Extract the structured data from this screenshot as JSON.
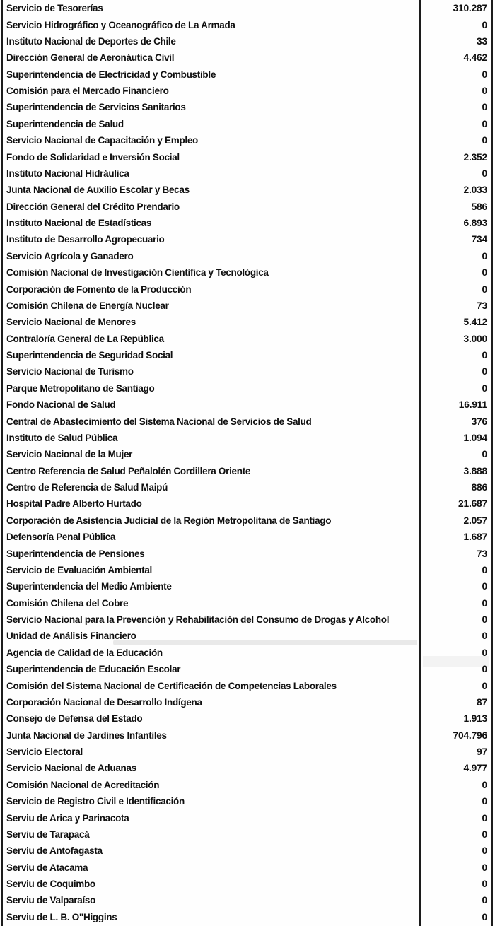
{
  "table": {
    "rows": [
      {
        "name": "Servicio de Tesorerías",
        "value": "310.287"
      },
      {
        "name": "Servicio Hidrográfico y Oceanográfico de La Armada",
        "value": "0"
      },
      {
        "name": "Instituto Nacional de Deportes de Chile",
        "value": "33"
      },
      {
        "name": "Dirección General de Aeronáutica Civil",
        "value": "4.462"
      },
      {
        "name": "Superintendencia de Electricidad y Combustible",
        "value": "0"
      },
      {
        "name": "Comisión para el Mercado Financiero",
        "value": "0"
      },
      {
        "name": "Superintendencia de Servicios Sanitarios",
        "value": "0"
      },
      {
        "name": "Superintendencia de Salud",
        "value": "0"
      },
      {
        "name": "Servicio Nacional de Capacitación y Empleo",
        "value": "0"
      },
      {
        "name": "Fondo de Solidaridad e Inversión Social",
        "value": "2.352"
      },
      {
        "name": "Instituto Nacional Hidráulica",
        "value": "0"
      },
      {
        "name": "Junta Nacional de Auxilio Escolar y Becas",
        "value": "2.033"
      },
      {
        "name": "Dirección General del Crédito Prendario",
        "value": "586"
      },
      {
        "name": "Instituto Nacional de Estadísticas",
        "value": "6.893"
      },
      {
        "name": "Instituto de Desarrollo Agropecuario",
        "value": "734"
      },
      {
        "name": "Servicio Agrícola y Ganadero",
        "value": "0"
      },
      {
        "name": "Comisión Nacional de Investigación Científica y Tecnológica",
        "value": "0"
      },
      {
        "name": "Corporación de Fomento de la Producción",
        "value": "0"
      },
      {
        "name": "Comisión Chilena de Energía Nuclear",
        "value": "73"
      },
      {
        "name": "Servicio Nacional de Menores",
        "value": "5.412"
      },
      {
        "name": "Contraloría General de La República",
        "value": "3.000"
      },
      {
        "name": "Superintendencia de Seguridad Social",
        "value": "0"
      },
      {
        "name": "Servicio Nacional de Turismo",
        "value": "0"
      },
      {
        "name": "Parque Metropolitano de Santiago",
        "value": "0"
      },
      {
        "name": "Fondo Nacional de Salud",
        "value": "16.911"
      },
      {
        "name": "Central de Abastecimiento del Sistema Nacional de Servicios de Salud",
        "value": "376"
      },
      {
        "name": "Instituto de Salud Pública",
        "value": "1.094"
      },
      {
        "name": "Servicio Nacional de la Mujer",
        "value": "0"
      },
      {
        "name": "Centro Referencia de Salud Peñalolén Cordillera Oriente",
        "value": "3.888"
      },
      {
        "name": "Centro de Referencia de Salud Maipú",
        "value": "886"
      },
      {
        "name": "Hospital Padre Alberto Hurtado",
        "value": "21.687"
      },
      {
        "name": "Corporación de Asistencia Judicial de la Región Metropolitana de Santiago",
        "value": "2.057"
      },
      {
        "name": "Defensoría Penal Pública",
        "value": "1.687"
      },
      {
        "name": "Superintendencia de Pensiones",
        "value": "73"
      },
      {
        "name": "Servicio de Evaluación Ambiental",
        "value": "0"
      },
      {
        "name": "Superintendencia del Medio Ambiente",
        "value": "0"
      },
      {
        "name": "Comisión Chilena del Cobre",
        "value": "0"
      },
      {
        "name": "Servicio Nacional para la Prevención y Rehabilitación del Consumo de Drogas y Alcohol",
        "value": "0"
      },
      {
        "name": "Unidad de Análisis Financiero",
        "value": "0"
      },
      {
        "name": "Agencia de Calidad de la Educación",
        "value": "0"
      },
      {
        "name": "Superintendencia de Educación Escolar",
        "value": "0"
      },
      {
        "name": "Comisión del Sistema Nacional de Certificación de Competencias Laborales",
        "value": "0"
      },
      {
        "name": "Corporación Nacional de Desarrollo Indígena",
        "value": "87"
      },
      {
        "name": "Consejo de Defensa del Estado",
        "value": "1.913"
      },
      {
        "name": "Junta Nacional de Jardines Infantiles",
        "value": "704.796"
      },
      {
        "name": "Servicio Electoral",
        "value": "97"
      },
      {
        "name": "Servicio Nacional de Aduanas",
        "value": "4.977"
      },
      {
        "name": "Comisión Nacional de Acreditación",
        "value": "0"
      },
      {
        "name": "Servicio de Registro Civil e Identificación",
        "value": "0"
      },
      {
        "name": "Serviu de Arica y Parinacota",
        "value": "0"
      },
      {
        "name": "Serviu de Tarapacá",
        "value": "0"
      },
      {
        "name": "Serviu de Antofagasta",
        "value": "0"
      },
      {
        "name": "Serviu de Atacama",
        "value": "0"
      },
      {
        "name": "Serviu de Coquimbo",
        "value": "0"
      },
      {
        "name": "Serviu de Valparaíso",
        "value": "0"
      },
      {
        "name": "Serviu de L. B. O\"Higgins",
        "value": "0"
      }
    ]
  }
}
